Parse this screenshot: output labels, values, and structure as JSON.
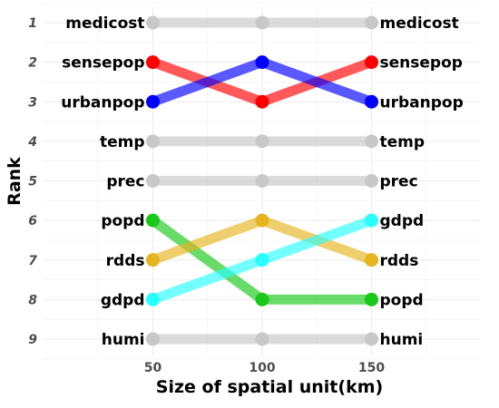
{
  "chart_data": {
    "type": "line",
    "title": "",
    "xlabel": "Size of spatial unit(km)",
    "ylabel": "Rank",
    "x": [
      50,
      100,
      150
    ],
    "x_ticks": [
      "50",
      "100",
      "150"
    ],
    "xlim": [
      0,
      200
    ],
    "ylim": [
      1,
      9
    ],
    "y_reversed": true,
    "y_ticks": [
      "1",
      "2",
      "3",
      "4",
      "5",
      "6",
      "7",
      "8",
      "9"
    ],
    "grid": true,
    "legend": "none",
    "series": [
      {
        "name": "medicost",
        "values": [
          1,
          1,
          1
        ],
        "color": "#c8c8c8"
      },
      {
        "name": "sensepop",
        "values": [
          2,
          3,
          2
        ],
        "color": "#ff0000"
      },
      {
        "name": "urbanpop",
        "values": [
          3,
          2,
          3
        ],
        "color": "#0000ff"
      },
      {
        "name": "temp",
        "values": [
          4,
          4,
          4
        ],
        "color": "#c8c8c8"
      },
      {
        "name": "prec",
        "values": [
          5,
          5,
          5
        ],
        "color": "#c8c8c8"
      },
      {
        "name": "popd",
        "values": [
          6,
          8,
          8
        ],
        "color": "#19c819"
      },
      {
        "name": "rdds",
        "values": [
          7,
          6,
          7
        ],
        "color": "#e6b41e"
      },
      {
        "name": "gdpd",
        "values": [
          8,
          7,
          6
        ],
        "color": "#28ffff"
      },
      {
        "name": "humi",
        "values": [
          9,
          9,
          9
        ],
        "color": "#c8c8c8"
      }
    ]
  }
}
